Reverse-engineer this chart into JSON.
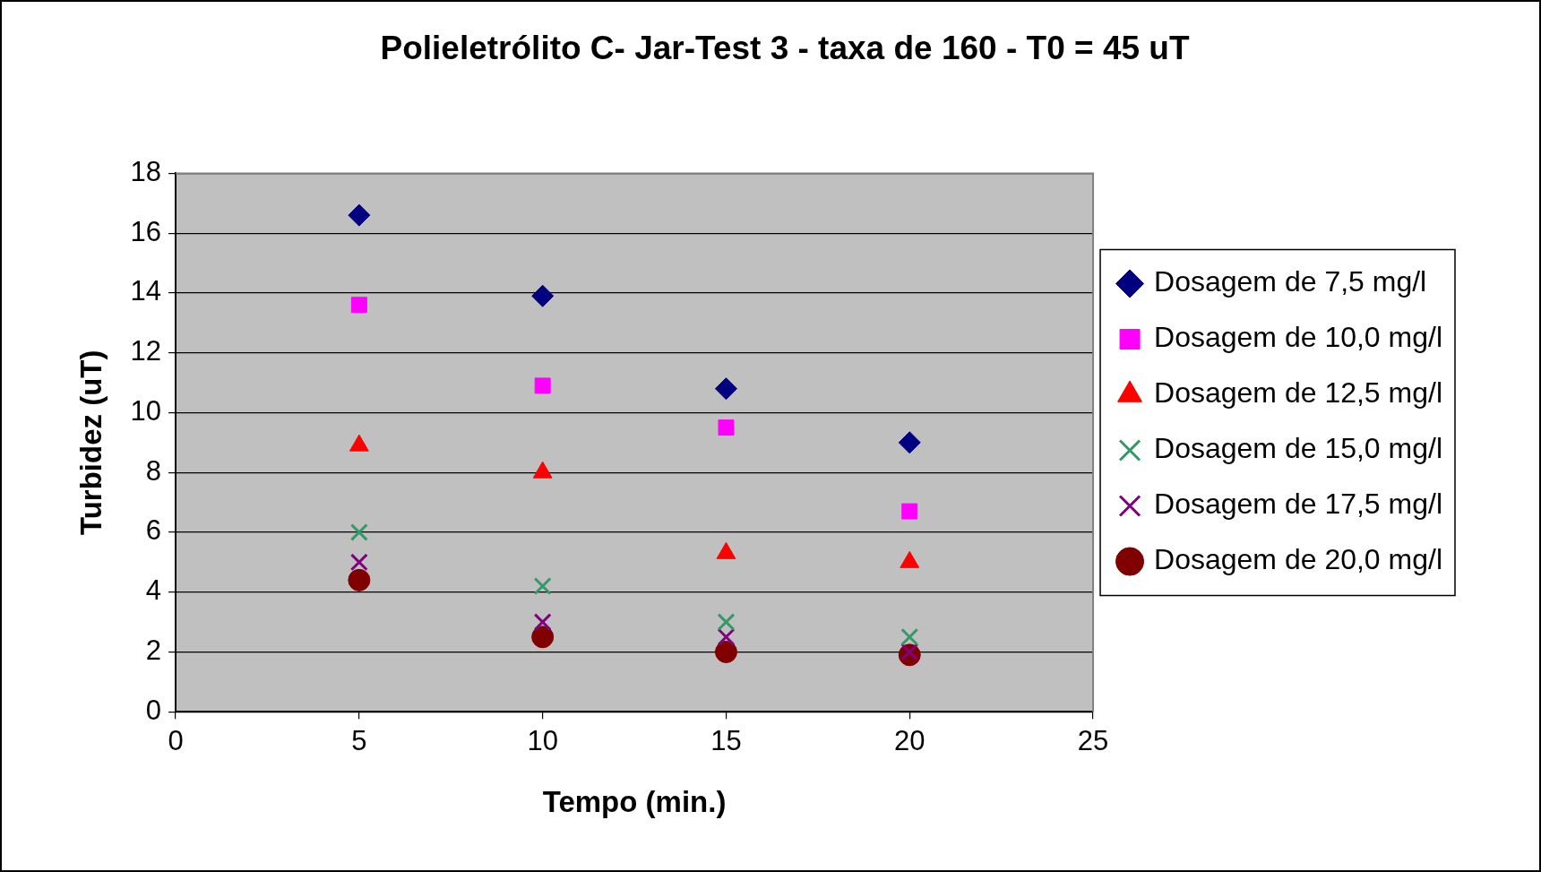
{
  "chart_data": {
    "type": "scatter",
    "title": "Polieletrólito C- Jar-Test 3 - taxa de 160 - T0 = 45 uT",
    "xlabel": "Tempo (min.)",
    "ylabel": "Turbidez (uT)",
    "x": [
      5,
      10,
      15,
      20
    ],
    "series": [
      {
        "name": "Dosagem de 7,5 mg/l",
        "color": "#000080",
        "marker": "diamond",
        "values": [
          16.6,
          13.9,
          10.8,
          9.0
        ]
      },
      {
        "name": "Dosagem de 10,0 mg/l",
        "color": "#ff00ff",
        "marker": "square",
        "values": [
          13.6,
          10.9,
          9.5,
          6.7
        ]
      },
      {
        "name": "Dosagem de 12,5 mg/l",
        "color": "#ff0000",
        "marker": "triangle",
        "values": [
          8.9,
          8.0,
          5.3,
          5.0
        ]
      },
      {
        "name": "Dosagem de 15,0 mg/l",
        "color": "#339966",
        "marker": "cross",
        "values": [
          6.0,
          4.2,
          3.0,
          2.5
        ]
      },
      {
        "name": "Dosagem de 17,5 mg/l",
        "color": "#800080",
        "marker": "cross",
        "values": [
          5.0,
          3.0,
          2.5,
          2.0
        ]
      },
      {
        "name": "Dosagem de 20,0 mg/l",
        "color": "#800000",
        "marker": "circle",
        "values": [
          4.4,
          2.5,
          2.0,
          1.9
        ]
      }
    ],
    "xlim": [
      0,
      25
    ],
    "xticks": [
      0,
      5,
      10,
      15,
      20,
      25
    ],
    "ylim": [
      0,
      18
    ],
    "yticks": [
      0,
      2,
      4,
      6,
      8,
      10,
      12,
      14,
      16,
      18
    ],
    "grid": "y",
    "legend": "right"
  }
}
